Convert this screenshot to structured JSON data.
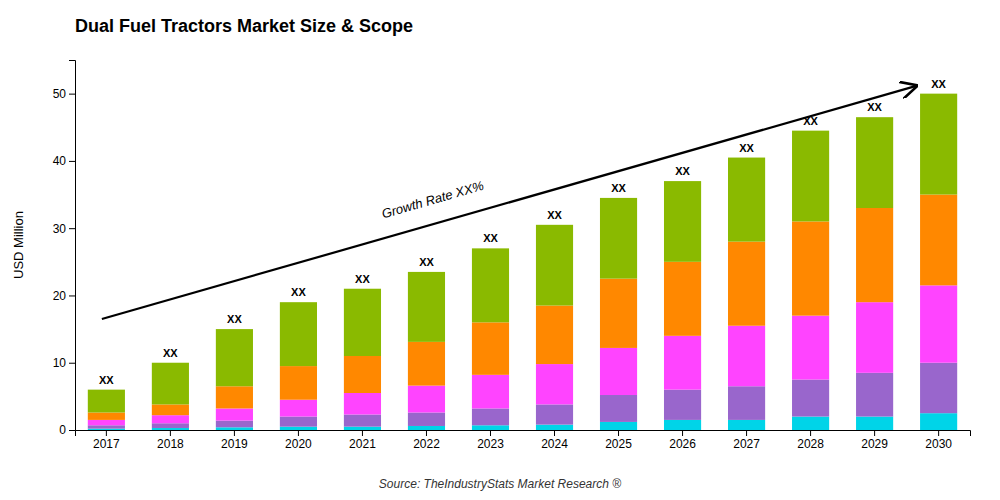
{
  "chart_data": {
    "type": "bar",
    "stacked": true,
    "title": "Dual Fuel Tractors Market Size & Scope",
    "ylabel": "USD Million",
    "source": "Source: TheIndustryStats Market Research ®",
    "annotation": "Growth Rate XX%",
    "bar_label": "XX",
    "categories": [
      "2017",
      "2018",
      "2019",
      "2020",
      "2021",
      "2022",
      "2023",
      "2024",
      "2025",
      "2026",
      "2027",
      "2028",
      "2029",
      "2030"
    ],
    "series": [
      {
        "color": "#00d4e8",
        "values": [
          0.2,
          0.3,
          0.4,
          0.5,
          0.5,
          0.6,
          0.7,
          0.8,
          1.2,
          1.5,
          1.5,
          2.0,
          2.0,
          2.5
        ]
      },
      {
        "color": "#9966cc",
        "values": [
          0.5,
          0.7,
          1.0,
          1.5,
          1.8,
          2.0,
          2.5,
          3.0,
          4.0,
          4.5,
          5.0,
          5.5,
          6.5,
          7.5
        ]
      },
      {
        "color": "#ff44ff",
        "values": [
          0.8,
          1.2,
          1.8,
          2.5,
          3.2,
          4.0,
          5.0,
          6.0,
          7.0,
          8.0,
          9.0,
          9.5,
          10.5,
          11.5
        ]
      },
      {
        "color": "#ff8800",
        "values": [
          1.1,
          1.6,
          3.3,
          5.0,
          5.5,
          6.5,
          7.8,
          8.7,
          10.3,
          11.0,
          12.5,
          14.0,
          14.0,
          13.5
        ]
      },
      {
        "color": "#8aba00",
        "values": [
          3.4,
          6.2,
          8.5,
          9.5,
          10.0,
          10.4,
          11.0,
          12.0,
          12.0,
          12.0,
          12.5,
          13.5,
          13.5,
          15.0
        ]
      }
    ],
    "ylim": [
      0,
      55
    ],
    "yticks": [
      0,
      10,
      20,
      30,
      40,
      50
    ],
    "grid": false
  }
}
